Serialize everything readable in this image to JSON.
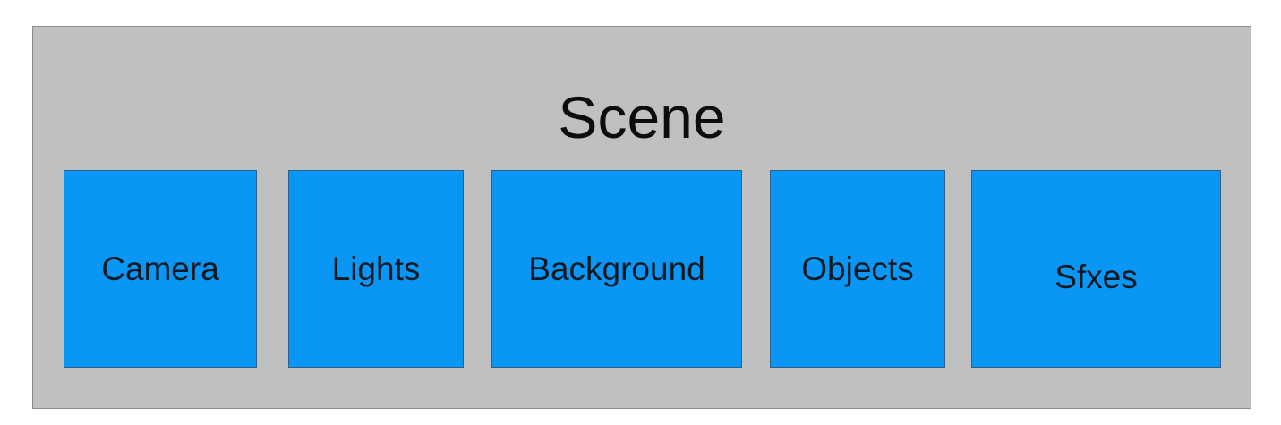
{
  "colors": {
    "scene_fill": "#c0c0c0",
    "component_fill": "#0a96f5"
  },
  "scene": {
    "title": "Scene",
    "components": [
      {
        "label": "Camera"
      },
      {
        "label": "Lights"
      },
      {
        "label": "Background"
      },
      {
        "label": "Objects"
      },
      {
        "label": "Sfxes"
      }
    ]
  }
}
